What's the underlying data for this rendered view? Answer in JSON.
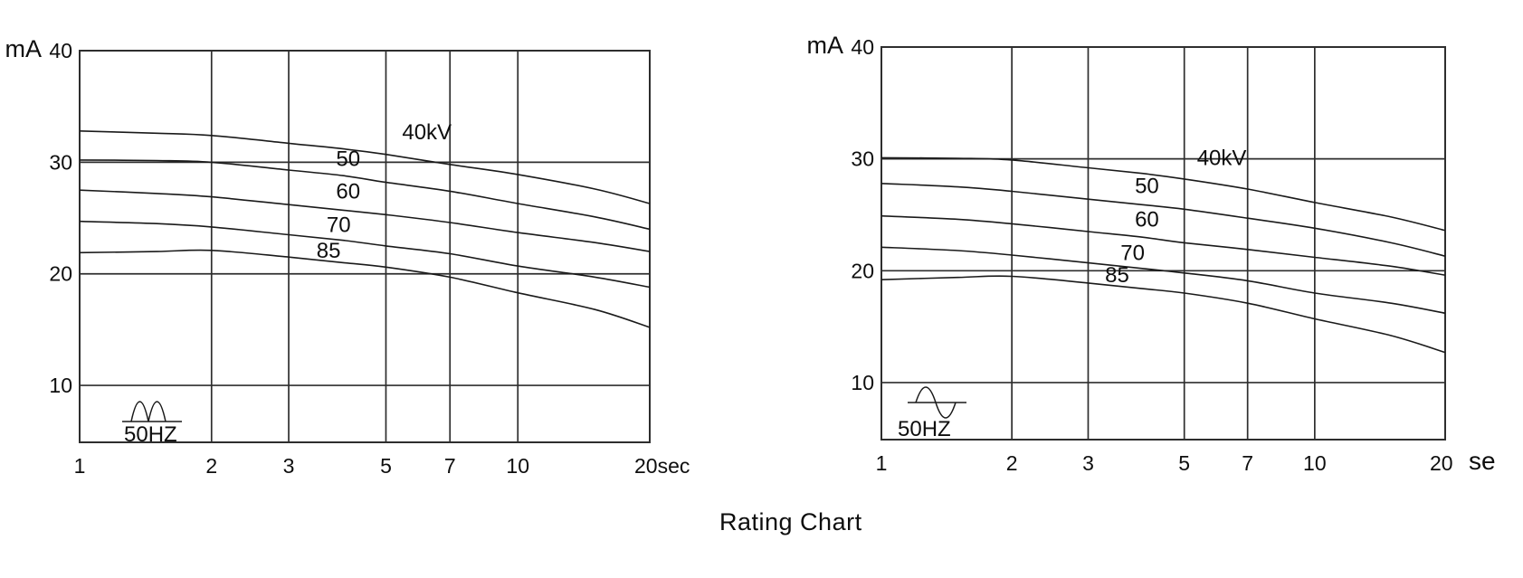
{
  "title": "Rating Chart",
  "colors": {
    "background": "#ffffff",
    "grid": "#2e2e2e",
    "curve": "#1a1a1a",
    "text": "#0e0e0e"
  },
  "chart_data": [
    {
      "type": "line",
      "position": "left",
      "y_axis_unit_label": "mA",
      "y_axis_ticks": [
        40,
        30,
        20,
        10
      ],
      "x_axis_ticks": [
        1,
        2,
        3,
        5,
        7,
        10
      ],
      "x_axis_end_tick": 20,
      "x_axis_end_label": "20sec",
      "x_axis_end_label_suffix": "",
      "x_scale": "log",
      "x_range": [
        1,
        20
      ],
      "y_range": [
        4.9,
        40
      ],
      "grid": true,
      "frequency_label": "50HZ",
      "waveform_icon": "full-wave-rectified-icon",
      "series": [
        {
          "name": "40kV",
          "label": "40kV",
          "label_anchor": {
            "t": 6.2,
            "mA": 32.7
          },
          "points": [
            [
              1,
              32.8
            ],
            [
              1.5,
              32.6
            ],
            [
              2,
              32.4
            ],
            [
              3,
              31.7
            ],
            [
              4,
              31.2
            ],
            [
              5,
              30.7
            ],
            [
              7,
              29.8
            ],
            [
              10,
              28.9
            ],
            [
              15,
              27.6
            ],
            [
              20,
              26.3
            ]
          ]
        },
        {
          "name": "50kV",
          "label": "50",
          "label_anchor": {
            "t": 4.1,
            "mA": 30.3
          },
          "points": [
            [
              1,
              30.2
            ],
            [
              1.5,
              30.15
            ],
            [
              2,
              30.0
            ],
            [
              3,
              29.3
            ],
            [
              4,
              28.8
            ],
            [
              5,
              28.2
            ],
            [
              7,
              27.4
            ],
            [
              10,
              26.3
            ],
            [
              15,
              25.1
            ],
            [
              20,
              24.0
            ]
          ]
        },
        {
          "name": "60kV",
          "label": "60",
          "label_anchor": {
            "t": 4.1,
            "mA": 27.4
          },
          "points": [
            [
              1,
              27.5
            ],
            [
              1.5,
              27.2
            ],
            [
              2,
              26.9
            ],
            [
              3,
              26.2
            ],
            [
              4,
              25.7
            ],
            [
              5,
              25.3
            ],
            [
              7,
              24.6
            ],
            [
              10,
              23.7
            ],
            [
              15,
              22.8
            ],
            [
              20,
              22.0
            ]
          ]
        },
        {
          "name": "70kV",
          "label": "70",
          "label_anchor": {
            "t": 3.9,
            "mA": 24.4
          },
          "points": [
            [
              1,
              24.7
            ],
            [
              1.5,
              24.5
            ],
            [
              2,
              24.2
            ],
            [
              3,
              23.5
            ],
            [
              4,
              23.0
            ],
            [
              5,
              22.5
            ],
            [
              7,
              21.8
            ],
            [
              10,
              20.7
            ],
            [
              15,
              19.7
            ],
            [
              20,
              18.8
            ]
          ]
        },
        {
          "name": "85kV",
          "label": "85",
          "label_anchor": {
            "t": 3.7,
            "mA": 22.1
          },
          "points": [
            [
              1,
              21.9
            ],
            [
              1.5,
              22.0
            ],
            [
              2,
              22.1
            ],
            [
              3,
              21.5
            ],
            [
              4,
              21.0
            ],
            [
              5,
              20.6
            ],
            [
              7,
              19.7
            ],
            [
              10,
              18.3
            ],
            [
              15,
              16.8
            ],
            [
              20,
              15.2
            ]
          ]
        }
      ]
    },
    {
      "type": "line",
      "position": "right",
      "y_axis_unit_label": "mA",
      "y_axis_ticks": [
        40,
        30,
        20,
        10
      ],
      "x_axis_ticks": [
        1,
        2,
        3,
        5,
        7,
        10
      ],
      "x_axis_end_tick": 20,
      "x_axis_end_label": "20",
      "x_axis_end_label_suffix": "se",
      "x_scale": "log",
      "x_range": [
        1,
        20
      ],
      "y_range": [
        4.9,
        40
      ],
      "grid": true,
      "frequency_label": "50HZ",
      "waveform_icon": "sine-wave-icon",
      "series": [
        {
          "name": "40kV",
          "label": "40kV",
          "label_anchor": {
            "t": 6.1,
            "mA": 30.1
          },
          "points": [
            [
              1,
              30.1
            ],
            [
              1.5,
              30.05
            ],
            [
              2,
              29.9
            ],
            [
              3,
              29.2
            ],
            [
              4,
              28.7
            ],
            [
              5,
              28.2
            ],
            [
              7,
              27.3
            ],
            [
              10,
              26.1
            ],
            [
              15,
              24.8
            ],
            [
              20,
              23.6
            ]
          ]
        },
        {
          "name": "50kV",
          "label": "50",
          "label_anchor": {
            "t": 4.1,
            "mA": 27.6
          },
          "points": [
            [
              1,
              27.8
            ],
            [
              1.5,
              27.5
            ],
            [
              2,
              27.1
            ],
            [
              3,
              26.4
            ],
            [
              4,
              25.9
            ],
            [
              5,
              25.5
            ],
            [
              7,
              24.7
            ],
            [
              10,
              23.8
            ],
            [
              15,
              22.5
            ],
            [
              20,
              21.3
            ]
          ]
        },
        {
          "name": "60kV",
          "label": "60",
          "label_anchor": {
            "t": 4.1,
            "mA": 24.6
          },
          "points": [
            [
              1,
              24.9
            ],
            [
              1.5,
              24.6
            ],
            [
              2,
              24.2
            ],
            [
              3,
              23.5
            ],
            [
              4,
              23.0
            ],
            [
              5,
              22.5
            ],
            [
              7,
              21.9
            ],
            [
              10,
              21.2
            ],
            [
              15,
              20.4
            ],
            [
              20,
              19.6
            ]
          ]
        },
        {
          "name": "70kV",
          "label": "70",
          "label_anchor": {
            "t": 3.8,
            "mA": 21.6
          },
          "points": [
            [
              1,
              22.1
            ],
            [
              1.5,
              21.8
            ],
            [
              2,
              21.4
            ],
            [
              3,
              20.7
            ],
            [
              4,
              20.2
            ],
            [
              5,
              19.8
            ],
            [
              7,
              19.1
            ],
            [
              10,
              18.0
            ],
            [
              15,
              17.1
            ],
            [
              20,
              16.2
            ]
          ]
        },
        {
          "name": "85kV",
          "label": "85",
          "label_anchor": {
            "t": 3.5,
            "mA": 19.6
          },
          "points": [
            [
              1,
              19.2
            ],
            [
              1.5,
              19.4
            ],
            [
              2,
              19.5
            ],
            [
              3,
              18.9
            ],
            [
              4,
              18.4
            ],
            [
              5,
              18.0
            ],
            [
              7,
              17.1
            ],
            [
              10,
              15.7
            ],
            [
              15,
              14.2
            ],
            [
              20,
              12.7
            ]
          ]
        }
      ]
    }
  ]
}
